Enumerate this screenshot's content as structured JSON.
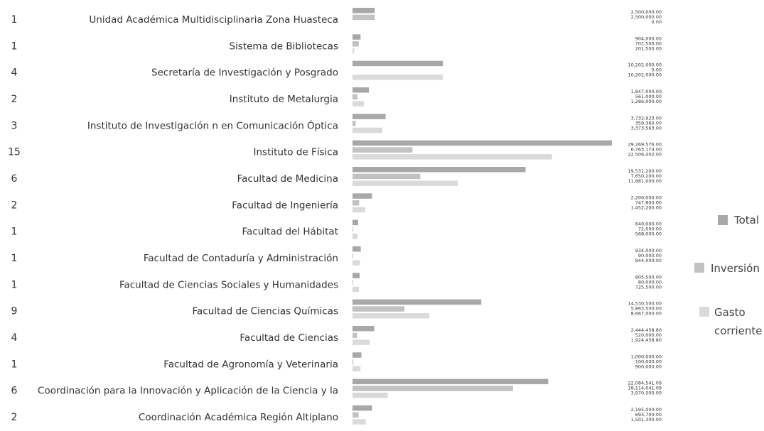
{
  "chart_data": {
    "type": "bar",
    "orientation": "horizontal",
    "categories": [
      "Unidad Académica Multidisciplinaria Zona Huasteca",
      "Sistema de Bibliotecas",
      "Secretaría de Investigación y Posgrado",
      "Instituto de Metalurgia",
      "Instituto de Investigación n en Comunicación Óptica",
      "Instituto de Física",
      "Facultad de Medicina",
      "Facultad de Ingeniería",
      "Facultad del Hábitat",
      "Facultad de Contaduría y Administración",
      "Facultad de Ciencias Sociales y Humanidades",
      "Facultad de Ciencias Químicas",
      "Facultad de Ciencias",
      "Facultad de Agronomía y Veterinaria",
      "Coordinación para la Innovación y Aplicación de la Ciencia y la",
      "Coordinación Académica Región Altiplano"
    ],
    "counts": [
      1,
      1,
      4,
      2,
      3,
      15,
      6,
      2,
      1,
      1,
      1,
      9,
      4,
      1,
      6,
      2
    ],
    "series": [
      {
        "name": "Total",
        "color": "#a8a8a8",
        "values": [
          2500000,
          904000,
          10202000,
          1847000,
          3732923,
          29269576,
          19531200,
          2200000,
          640000,
          934000,
          805500,
          14530500,
          2444458.8,
          1000000,
          22084541.09,
          2195000
        ],
        "value_labels": [
          "2,500,000.00",
          "904,000.00",
          "10,202,000.00",
          "1,847,000.00",
          "3,732,923.00",
          "29,269,576.00",
          "19,531,200.00",
          "2,200,000.00",
          "640,000.00",
          "934,000.00",
          "805,500.00",
          "14,530,500.00",
          "2,444,458.80",
          "1,000,000.00",
          "22,084,541.09",
          "2,195,000.00"
        ]
      },
      {
        "name": "Inversión",
        "color": "#c2c2c2",
        "values": [
          2500000,
          702500,
          0,
          561000,
          359360,
          6763174,
          7650200,
          747800,
          72000,
          90000,
          80000,
          5863500,
          520000,
          100000,
          18114041.09,
          693700
        ],
        "value_labels": [
          "2,500,000.00",
          "702,500.00",
          "0.00",
          "561,000.00",
          "359,360.00",
          "6,763,174.00",
          "7,650,200.00",
          "747,800.00",
          "72,000.00",
          "90,000.00",
          "80,000.00",
          "5,863,500.00",
          "520,000.00",
          "100,000.00",
          "18,114,041.09",
          "693,700.00"
        ]
      },
      {
        "name": "Gasto corriente",
        "color": "#dadada",
        "values": [
          0,
          201500,
          10202000,
          1286000,
          3373563,
          22506402,
          11881000,
          1452200,
          568000,
          844000,
          725500,
          8667000,
          1924458.8,
          900000,
          3970500,
          1501300
        ],
        "value_labels": [
          "0.00",
          "201,500.00",
          "10,202,000.00",
          "1,286,000.00",
          "3,373,563.00",
          "22,506,402.00",
          "11,881,000.00",
          "1,452,200.00",
          "568,000.00",
          "844,000.00",
          "725,500.00",
          "8,667,000.00",
          "1,924,458.80",
          "900,000.00",
          "3,970,500.00",
          "1,501,300.00"
        ]
      }
    ]
  }
}
